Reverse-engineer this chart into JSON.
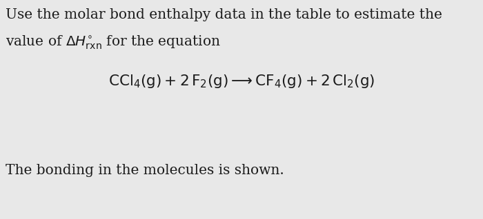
{
  "background_color": "#e8e8e8",
  "text_color": "#1a1a1a",
  "line1": "Use the molar bond enthalpy data in the table to estimate the",
  "line2": "value of $\\Delta H^{\\circ}_{\\mathrm{rxn}}$ for the equation",
  "equation": "$\\mathrm{CCl_4(g) + 2\\,F_2(g) \\longrightarrow CF_4(g) + 2\\,Cl_2(g)}$",
  "line3": "The bonding in the molecules is shown.",
  "fontsize_body": 14.5,
  "fontsize_eq": 15.5
}
